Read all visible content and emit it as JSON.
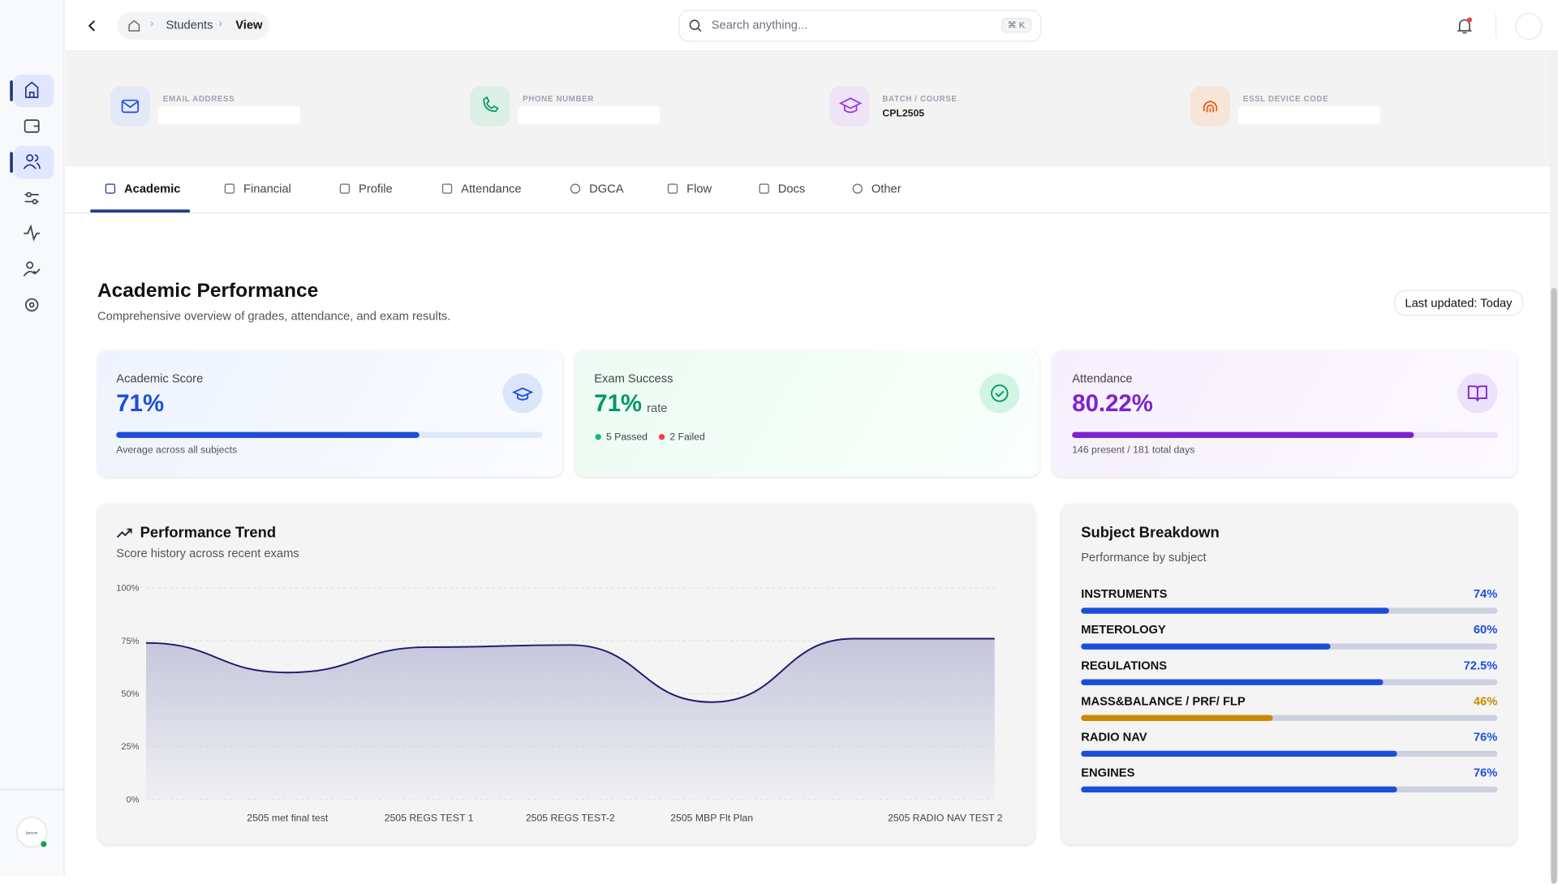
{
  "breadcrumb": [
    "Students",
    "View"
  ],
  "search": {
    "placeholder": "Search anything...",
    "shortcut": "⌘ K"
  },
  "contact": [
    {
      "label": "EMAIL ADDRESS"
    },
    {
      "label": "PHONE NUMBER"
    },
    {
      "label": "BATCH / COURSE",
      "value": "CPL2505"
    },
    {
      "label": "ESSL DEVICE CODE"
    }
  ],
  "tabs": [
    "Academic",
    "Financial",
    "Profile",
    "Attendance",
    "DGCA",
    "Flow",
    "Docs",
    "Other"
  ],
  "header": {
    "title": "Academic Performance",
    "subtitle": "Comprehensive overview of grades, attendance, and exam results.",
    "badge": "Last updated: Today"
  },
  "cards": [
    {
      "title": "Academic Score",
      "value": 71,
      "value_label": "71%",
      "xlim": [
        0,
        100
      ],
      "note": "Average across all subjects",
      "color": "#1d4ed8"
    },
    {
      "title": "Exam Success",
      "value_text": "71%",
      "unit": "rate",
      "passed": "5 Passed",
      "failed": "2 Failed",
      "color": "#059669"
    },
    {
      "title": "Attendance",
      "value": 80.22,
      "value_label": "80.22%",
      "xlim": [
        0,
        100
      ],
      "note": "146 present / 181 total days",
      "color": "#7e22ce"
    }
  ],
  "chart_data": {
    "type": "line",
    "title": "Performance Trend",
    "subtitle": "Score history across recent exams",
    "categories": [
      null,
      "2505 met final test",
      "2505 REGS TEST 1",
      "2505 REGS TEST-2",
      "2505 MBP Flt Plan",
      null,
      "2505 RADIO NAV TEST 2"
    ],
    "values": [
      74,
      60,
      72,
      73,
      46,
      76,
      76
    ],
    "color": "#1e1b6e",
    "ylim": [
      0,
      100
    ],
    "yticks": [
      {
        "value": 0,
        "label": "0%"
      },
      {
        "value": 25,
        "label": "25%"
      },
      {
        "value": 50,
        "label": "50%"
      },
      {
        "value": 75,
        "label": "75%"
      },
      {
        "value": 100,
        "label": "100%"
      }
    ],
    "grid": true
  },
  "subjects": {
    "title": "Subject Breakdown",
    "subtitle": "Performance by subject",
    "xlim": [
      0,
      100
    ],
    "names": [
      "INSTRUMENTS",
      "METEROLOGY",
      "REGULATIONS",
      "MASS&BALANCE / PRF/ FLP",
      "RADIO NAV",
      "ENGINES"
    ],
    "values": [
      74,
      60,
      72.5,
      46,
      76,
      76
    ],
    "value_labels": [
      "74%",
      "60%",
      "72.5%",
      "46%",
      "76%",
      "76%"
    ],
    "colors": [
      "#1d4ed8",
      "#1d4ed8",
      "#1d4ed8",
      "#ca8a04",
      "#1d4ed8",
      "#1d4ed8"
    ]
  }
}
